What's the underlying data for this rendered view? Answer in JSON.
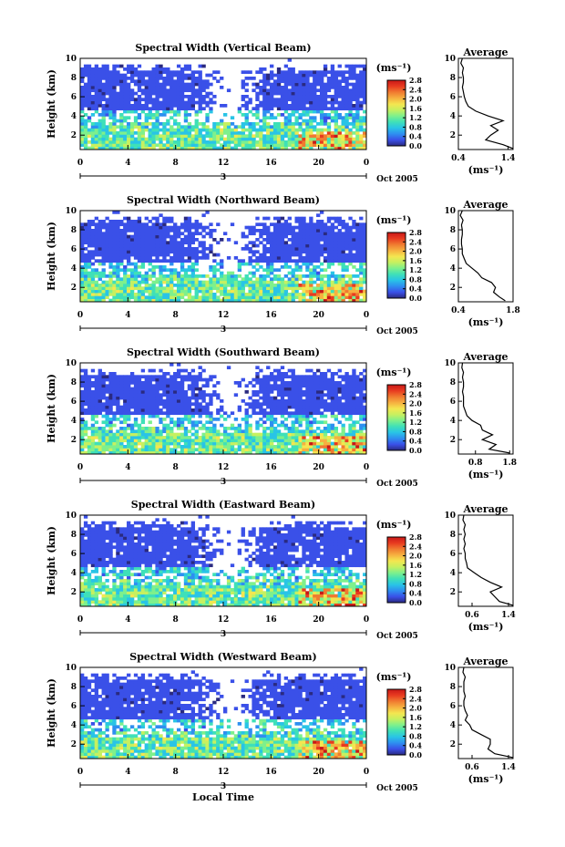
{
  "colors": {
    "axis": "#000000",
    "colorbar": [
      "#2a2a80",
      "#3a50e8",
      "#2e8ff0",
      "#29c4e6",
      "#3fe0b8",
      "#7ef08c",
      "#c6f060",
      "#f4e650",
      "#f6b040",
      "#f07a30",
      "#e83a20",
      "#c81818"
    ]
  },
  "xlabel": "Local Time",
  "date_label": "Oct 2005",
  "day_label": "3",
  "ylabel": "Height (km)",
  "cb_unit": "(ms⁻¹)",
  "avg_title": "Average",
  "avg_xlabel": "(ms⁻¹)",
  "chart_data": [
    {
      "type": "heatmap",
      "title": "Spectral Width (Vertical Beam)",
      "ylabel": "Height (km)",
      "xticks": [
        "0",
        "4",
        "8",
        "12",
        "16",
        "20",
        "0"
      ],
      "yticks": [
        "2",
        "4",
        "6",
        "8",
        "10"
      ],
      "xlim": [
        0,
        24
      ],
      "ylim": [
        0.5,
        10
      ],
      "colorbar": {
        "ticks": [
          "0.0",
          "0.4",
          "0.8",
          "1.2",
          "1.6",
          "2.0",
          "2.4",
          "2.8"
        ],
        "range": [
          0,
          2.8
        ]
      },
      "average": {
        "title": "Average",
        "xticks": [
          "0.4",
          "1.4"
        ],
        "xlim": [
          0.4,
          1.5
        ],
        "yticks": [
          "2",
          "4",
          "6",
          "8",
          "10"
        ],
        "ylim": [
          0.5,
          10
        ],
        "heights": [
          0.6,
          1.0,
          1.5,
          2.0,
          2.5,
          3.0,
          3.5,
          4.0,
          4.5,
          5.0,
          5.5,
          6.0,
          6.5,
          7.0,
          7.5,
          8.0,
          8.5,
          9.0,
          9.5,
          10.0
        ],
        "values": [
          1.5,
          1.3,
          0.95,
          1.05,
          1.2,
          1.05,
          1.3,
          1.0,
          0.75,
          0.6,
          0.55,
          0.52,
          0.5,
          0.48,
          0.5,
          0.5,
          0.48,
          0.5,
          0.45,
          0.48
        ]
      }
    },
    {
      "type": "heatmap",
      "title": "Spectral Width (Northward Beam)",
      "ylabel": "Height (km)",
      "xticks": [
        "0",
        "4",
        "8",
        "12",
        "16",
        "20",
        "0"
      ],
      "yticks": [
        "2",
        "4",
        "6",
        "8",
        "10"
      ],
      "xlim": [
        0,
        24
      ],
      "ylim": [
        0.5,
        10
      ],
      "colorbar": {
        "ticks": [
          "0.0",
          "0.4",
          "0.8",
          "1.2",
          "1.6",
          "2.0",
          "2.4",
          "2.8"
        ],
        "range": [
          0,
          2.8
        ]
      },
      "average": {
        "title": "Average",
        "xticks": [
          "0.4",
          "1.8"
        ],
        "xlim": [
          0.4,
          1.8
        ],
        "yticks": [
          "2",
          "4",
          "6",
          "8",
          "10"
        ],
        "ylim": [
          0.5,
          10
        ],
        "heights": [
          0.6,
          1.0,
          1.5,
          2.0,
          2.5,
          3.0,
          3.5,
          4.0,
          4.5,
          5.0,
          5.5,
          6.0,
          6.5,
          7.0,
          7.5,
          8.0,
          8.5,
          9.0,
          9.5,
          10.0
        ],
        "values": [
          1.6,
          1.45,
          1.3,
          1.35,
          1.25,
          1.0,
          0.9,
          0.75,
          0.6,
          0.55,
          0.5,
          0.5,
          0.48,
          0.48,
          0.5,
          0.5,
          0.48,
          0.52,
          0.45,
          0.5
        ]
      }
    },
    {
      "type": "heatmap",
      "title": "Spectral Width (Southward Beam)",
      "ylabel": "Height (km)",
      "xticks": [
        "0",
        "4",
        "8",
        "12",
        "16",
        "20",
        "0"
      ],
      "yticks": [
        "2",
        "4",
        "6",
        "8",
        "10"
      ],
      "xlim": [
        0,
        24
      ],
      "ylim": [
        0.5,
        10
      ],
      "colorbar": {
        "ticks": [
          "0.0",
          "0.4",
          "0.8",
          "1.2",
          "1.6",
          "2.0",
          "2.4",
          "2.8"
        ],
        "range": [
          0,
          2.8
        ]
      },
      "average": {
        "title": "Average",
        "xticks": [
          "0.8",
          "1.8"
        ],
        "xlim": [
          0.3,
          1.9
        ],
        "yticks": [
          "2",
          "4",
          "6",
          "8",
          "10"
        ],
        "ylim": [
          0.5,
          10
        ],
        "heights": [
          0.6,
          1.0,
          1.5,
          2.0,
          2.5,
          3.0,
          3.5,
          4.0,
          4.5,
          5.0,
          5.5,
          6.0,
          6.5,
          7.0,
          7.5,
          8.0,
          8.5,
          9.0,
          9.5,
          10.0
        ],
        "values": [
          1.8,
          1.2,
          1.4,
          1.0,
          1.3,
          1.0,
          0.95,
          0.7,
          0.55,
          0.5,
          0.45,
          0.45,
          0.45,
          0.42,
          0.45,
          0.45,
          0.42,
          0.45,
          0.4,
          0.42
        ]
      }
    },
    {
      "type": "heatmap",
      "title": "Spectral Width (Eastward Beam)",
      "ylabel": "Height (km)",
      "xticks": [
        "0",
        "4",
        "8",
        "12",
        "16",
        "20",
        "0"
      ],
      "yticks": [
        "2",
        "4",
        "6",
        "8",
        "10"
      ],
      "xlim": [
        0,
        24
      ],
      "ylim": [
        0.5,
        10
      ],
      "colorbar": {
        "ticks": [
          "0.0",
          "0.4",
          "0.8",
          "1.2",
          "1.6",
          "2.0",
          "2.4",
          "2.8"
        ],
        "range": [
          0,
          2.8
        ]
      },
      "average": {
        "title": "Average",
        "xticks": [
          "0.6",
          "1.4"
        ],
        "xlim": [
          0.3,
          1.5
        ],
        "yticks": [
          "2",
          "4",
          "6",
          "8",
          "10"
        ],
        "ylim": [
          0.5,
          10
        ],
        "heights": [
          0.6,
          1.0,
          1.5,
          2.0,
          2.5,
          3.0,
          3.5,
          4.0,
          4.5,
          5.0,
          5.5,
          6.0,
          6.5,
          7.0,
          7.5,
          8.0,
          8.5,
          9.0,
          9.5,
          10.0
        ],
        "values": [
          1.5,
          1.2,
          1.1,
          1.0,
          1.25,
          1.0,
          0.8,
          0.65,
          0.5,
          0.48,
          0.45,
          0.45,
          0.42,
          0.45,
          0.42,
          0.45,
          0.42,
          0.45,
          0.4,
          0.42
        ]
      }
    },
    {
      "type": "heatmap",
      "title": "Spectral Width (Westward Beam)",
      "ylabel": "Height (km)",
      "xticks": [
        "0",
        "4",
        "8",
        "12",
        "16",
        "20",
        "0"
      ],
      "yticks": [
        "2",
        "4",
        "6",
        "8",
        "10"
      ],
      "xlim": [
        0,
        24
      ],
      "ylim": [
        0.5,
        10
      ],
      "colorbar": {
        "ticks": [
          "0.0",
          "0.4",
          "0.8",
          "1.2",
          "1.6",
          "2.0",
          "2.4",
          "2.8"
        ],
        "range": [
          0,
          2.8
        ]
      },
      "average": {
        "title": "Average",
        "xticks": [
          "0.6",
          "1.4"
        ],
        "xlim": [
          0.3,
          1.5
        ],
        "yticks": [
          "2",
          "4",
          "6",
          "8",
          "10"
        ],
        "ylim": [
          0.5,
          10
        ],
        "heights": [
          0.6,
          1.0,
          1.5,
          2.0,
          2.5,
          3.0,
          3.5,
          4.0,
          4.5,
          5.0,
          5.5,
          6.0,
          6.5,
          7.0,
          7.5,
          8.0,
          8.5,
          9.0,
          9.5,
          10.0
        ],
        "values": [
          1.5,
          1.1,
          0.95,
          1.0,
          1.0,
          0.8,
          0.6,
          0.55,
          0.45,
          0.5,
          0.45,
          0.42,
          0.42,
          0.45,
          0.42,
          0.42,
          0.42,
          0.45,
          0.4,
          0.42
        ]
      }
    }
  ]
}
